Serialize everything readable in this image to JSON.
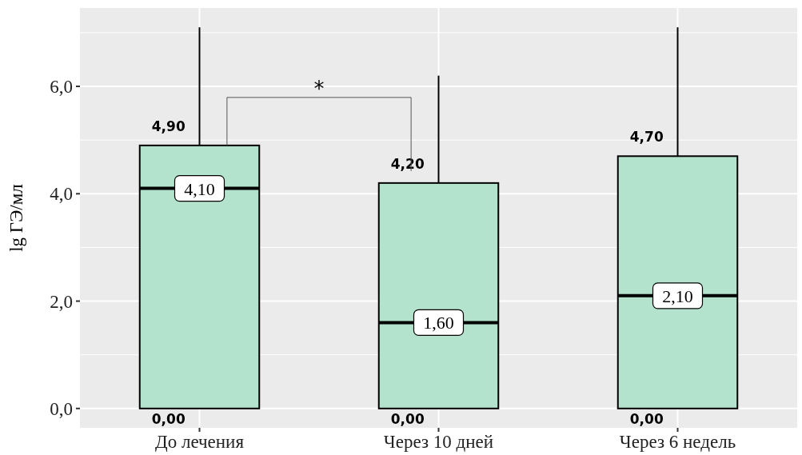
{
  "chart_data": {
    "type": "box",
    "ylabel": "lg ГЭ/мл",
    "categories": [
      "До лечения",
      "Через 10 дней",
      "Через 6 недель"
    ],
    "color": "#b3e2cd",
    "boxes": [
      {
        "low": 0,
        "q1": 0,
        "median": 4.1,
        "q3": 4.9,
        "high": 7.1
      },
      {
        "low": 0,
        "q1": 0,
        "median": 1.6,
        "q3": 4.2,
        "high": 6.2
      },
      {
        "low": 0,
        "q1": 0,
        "median": 2.1,
        "q3": 4.7,
        "high": 7.1
      }
    ],
    "ylim": [
      -0.36,
      7.46
    ],
    "yticks": [
      {
        "value": 0,
        "label": "0,0"
      },
      {
        "value": 2,
        "label": "2,0"
      },
      {
        "value": 4,
        "label": "4,0"
      },
      {
        "value": 6,
        "label": "6,0"
      }
    ],
    "grid": true,
    "annotations": [
      {
        "text": "4,90",
        "x": "До лечения",
        "y": 4.9
      },
      {
        "text": "4,10",
        "x": "До лечения",
        "y": 4.1
      },
      {
        "text": "0,00",
        "x": "До лечения",
        "y": 0
      },
      {
        "text": "4,20",
        "x": "Через 10 дней",
        "y": 4.2
      },
      {
        "text": "1,60",
        "x": "Через 10 дней",
        "y": 1.6
      },
      {
        "text": "0,00",
        "x": "Через 10 дней",
        "y": 0
      },
      {
        "text": "4,70",
        "x": "Через 6 недель",
        "y": 4.7
      },
      {
        "text": "2,10",
        "x": "Через 6 недель",
        "y": 2.1
      },
      {
        "text": "0,00",
        "x": "Через 6 недель",
        "y": 0
      },
      "*"
    ]
  }
}
